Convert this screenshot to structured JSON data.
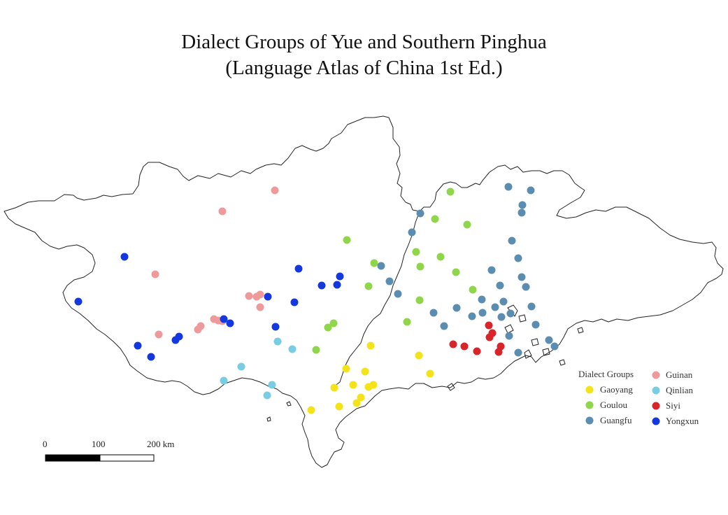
{
  "title": {
    "line1": "Dialect Groups of Yue and Southern Pinghua",
    "line2": "(Language Atlas of China 1st Ed.)"
  },
  "legend": {
    "title": "Dialect Groups",
    "items": [
      {
        "key": "gaoyang",
        "label": "Gaoyang",
        "color": "#f5e31a"
      },
      {
        "key": "goulou",
        "label": "Goulou",
        "color": "#8fd64b"
      },
      {
        "key": "guangfu",
        "label": "Guangfu",
        "color": "#5b8db0"
      },
      {
        "key": "guinan",
        "label": "Guinan",
        "color": "#ee9a9a"
      },
      {
        "key": "qinlian",
        "label": "Qinlian",
        "color": "#79cde2"
      },
      {
        "key": "siyi",
        "label": "Siyi",
        "color": "#d9242a"
      },
      {
        "key": "yongxun",
        "label": "Yongxun",
        "color": "#1438e0"
      }
    ]
  },
  "scale_bar": {
    "ticks": [
      "0",
      "100",
      "200 km"
    ]
  }
}
